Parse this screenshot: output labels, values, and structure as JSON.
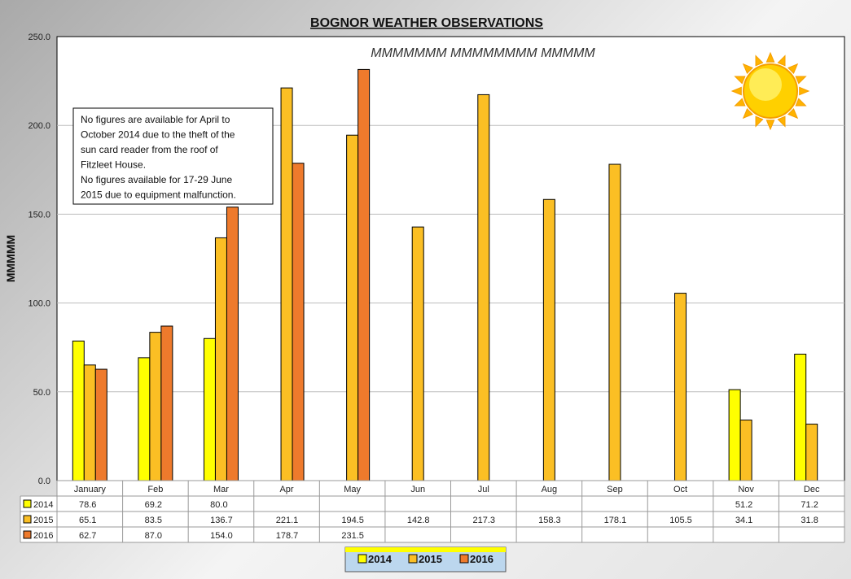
{
  "chart_data": {
    "type": "bar",
    "title": "BOGNOR WEATHER OBSERVATIONS",
    "subtitle": "MMMMMMM MMMMMMMM MMMMM",
    "ylabel": "MMMMM",
    "ylim": [
      0,
      250
    ],
    "yticks": [
      "0.0",
      "50.0",
      "100.0",
      "150.0",
      "200.0",
      "250.0"
    ],
    "categories": [
      "January",
      "Feb",
      "Mar",
      "Apr",
      "May",
      "Jun",
      "Jul",
      "Aug",
      "Sep",
      "Oct",
      "Nov",
      "Dec"
    ],
    "series": [
      {
        "name": "2014",
        "color": "#ffff00",
        "values": [
          78.6,
          69.2,
          80.0,
          null,
          null,
          null,
          null,
          null,
          null,
          null,
          51.2,
          71.2
        ]
      },
      {
        "name": "2015",
        "color": "#fbbf24",
        "values": [
          65.1,
          83.5,
          136.7,
          221.1,
          194.5,
          142.8,
          217.3,
          158.3,
          178.1,
          105.5,
          34.1,
          31.8
        ]
      },
      {
        "name": "2016",
        "color": "#ee7a2c",
        "values": [
          62.7,
          87.0,
          154.0,
          178.7,
          231.5,
          null,
          null,
          null,
          null,
          null,
          null,
          null
        ]
      }
    ],
    "table_rows": [
      {
        "label": "2014",
        "cells": [
          "78.6",
          "69.2",
          "80.0",
          "",
          "",
          "",
          "",
          "",
          "",
          "",
          "51.2",
          "71.2"
        ]
      },
      {
        "label": "2015",
        "cells": [
          "65.1",
          "83.5",
          "136.7",
          "221.1",
          "194.5",
          "142.8",
          "217.3",
          "158.3",
          "178.1",
          "105.5",
          "34.1",
          "31.8"
        ]
      },
      {
        "label": "2016",
        "cells": [
          "62.7",
          "87.0",
          "154.0",
          "178.7",
          "231.5",
          "",
          "",
          "",
          "",
          "",
          "",
          ""
        ]
      }
    ],
    "annotation": [
      "No figures are available for April to",
      "October  2014  due to the theft of the",
      "sun card reader from the roof of",
      "Fitzleet House.",
      "No figures available for 17-29 June",
      "2015  due to equipment malfunction."
    ],
    "legend": [
      "2014",
      "2015",
      "2016"
    ],
    "legend_position": "bottom",
    "grid": true,
    "icon": "sun-icon"
  }
}
